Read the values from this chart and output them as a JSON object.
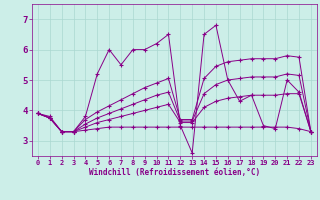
{
  "xlabel": "Windchill (Refroidissement éolien,°C)",
  "background_color": "#cceee8",
  "grid_color": "#aad8d0",
  "line_color": "#880088",
  "xlim": [
    -0.5,
    23.5
  ],
  "ylim": [
    2.5,
    7.5
  ],
  "yticks": [
    3,
    4,
    5,
    6,
    7
  ],
  "xticks": [
    0,
    1,
    2,
    3,
    4,
    5,
    6,
    7,
    8,
    9,
    10,
    11,
    12,
    13,
    14,
    15,
    16,
    17,
    18,
    19,
    20,
    21,
    22,
    23
  ],
  "series": [
    [
      3.9,
      3.8,
      3.3,
      3.3,
      3.8,
      5.2,
      6.0,
      5.5,
      6.0,
      6.0,
      6.2,
      6.5,
      3.5,
      2.6,
      6.5,
      6.8,
      5.0,
      4.3,
      4.5,
      3.5,
      3.4,
      5.0,
      4.6,
      3.3
    ],
    [
      3.9,
      3.75,
      3.3,
      3.3,
      3.35,
      3.4,
      3.45,
      3.45,
      3.45,
      3.45,
      3.45,
      3.45,
      3.45,
      3.45,
      3.45,
      3.45,
      3.45,
      3.45,
      3.45,
      3.45,
      3.45,
      3.45,
      3.4,
      3.3
    ],
    [
      3.9,
      3.75,
      3.3,
      3.3,
      3.45,
      3.6,
      3.7,
      3.8,
      3.9,
      4.0,
      4.1,
      4.2,
      3.6,
      3.6,
      4.1,
      4.3,
      4.4,
      4.45,
      4.5,
      4.5,
      4.5,
      4.55,
      4.55,
      3.3
    ],
    [
      3.9,
      3.75,
      3.3,
      3.3,
      3.55,
      3.75,
      3.9,
      4.05,
      4.2,
      4.35,
      4.5,
      4.6,
      3.65,
      3.65,
      4.55,
      4.85,
      5.0,
      5.05,
      5.1,
      5.1,
      5.1,
      5.2,
      5.15,
      3.3
    ],
    [
      3.9,
      3.75,
      3.3,
      3.3,
      3.7,
      3.95,
      4.15,
      4.35,
      4.55,
      4.75,
      4.9,
      5.05,
      3.7,
      3.7,
      5.05,
      5.45,
      5.6,
      5.65,
      5.7,
      5.7,
      5.7,
      5.8,
      5.75,
      3.3
    ]
  ]
}
